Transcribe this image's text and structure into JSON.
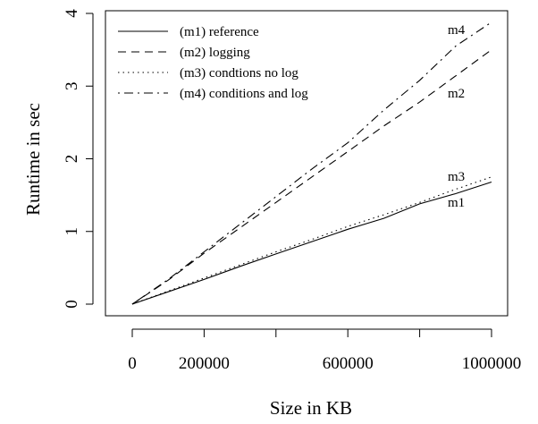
{
  "chart_data": {
    "type": "line",
    "xlabel": "Size in KB",
    "ylabel": "Runtime in sec",
    "xlim": [
      0,
      1000000
    ],
    "ylim": [
      0,
      4
    ],
    "x_ticks": [
      0,
      200000,
      400000,
      600000,
      800000,
      1000000
    ],
    "x_tick_labels": [
      "0",
      "200000",
      "",
      "600000",
      "",
      "1000000"
    ],
    "y_ticks": [
      0,
      1,
      2,
      3,
      4
    ],
    "y_tick_labels": [
      "0",
      "1",
      "2",
      "3",
      "4"
    ],
    "legend_position": "top-left",
    "grid": false,
    "series": [
      {
        "name": "(m1) reference",
        "end_label": "m1",
        "line_style": "solid",
        "x": [
          0,
          100000,
          200000,
          300000,
          400000,
          500000,
          600000,
          700000,
          800000,
          900000,
          1000000
        ],
        "values": [
          0,
          0.17,
          0.34,
          0.52,
          0.69,
          0.86,
          1.03,
          1.18,
          1.38,
          1.52,
          1.68
        ]
      },
      {
        "name": "(m2) logging",
        "end_label": "m2",
        "line_style": "dashed",
        "x": [
          0,
          100000,
          200000,
          300000,
          400000,
          500000,
          600000,
          700000,
          800000,
          900000,
          1000000
        ],
        "values": [
          0,
          0.33,
          0.7,
          1.05,
          1.4,
          1.75,
          2.1,
          2.45,
          2.78,
          3.14,
          3.5
        ]
      },
      {
        "name": "(m3) condtions no log",
        "end_label": "m3",
        "line_style": "dotted",
        "x": [
          0,
          100000,
          200000,
          300000,
          400000,
          500000,
          600000,
          700000,
          800000,
          900000,
          1000000
        ],
        "values": [
          0,
          0.18,
          0.36,
          0.54,
          0.72,
          0.89,
          1.07,
          1.23,
          1.4,
          1.58,
          1.75
        ]
      },
      {
        "name": "(m4) conditions and log",
        "end_label": "m4",
        "line_style": "dashdot",
        "x": [
          0,
          100000,
          200000,
          300000,
          400000,
          500000,
          600000,
          700000,
          800000,
          900000,
          1000000
        ],
        "values": [
          0,
          0.34,
          0.72,
          1.1,
          1.48,
          1.86,
          2.22,
          2.67,
          3.08,
          3.55,
          3.88
        ]
      }
    ]
  }
}
